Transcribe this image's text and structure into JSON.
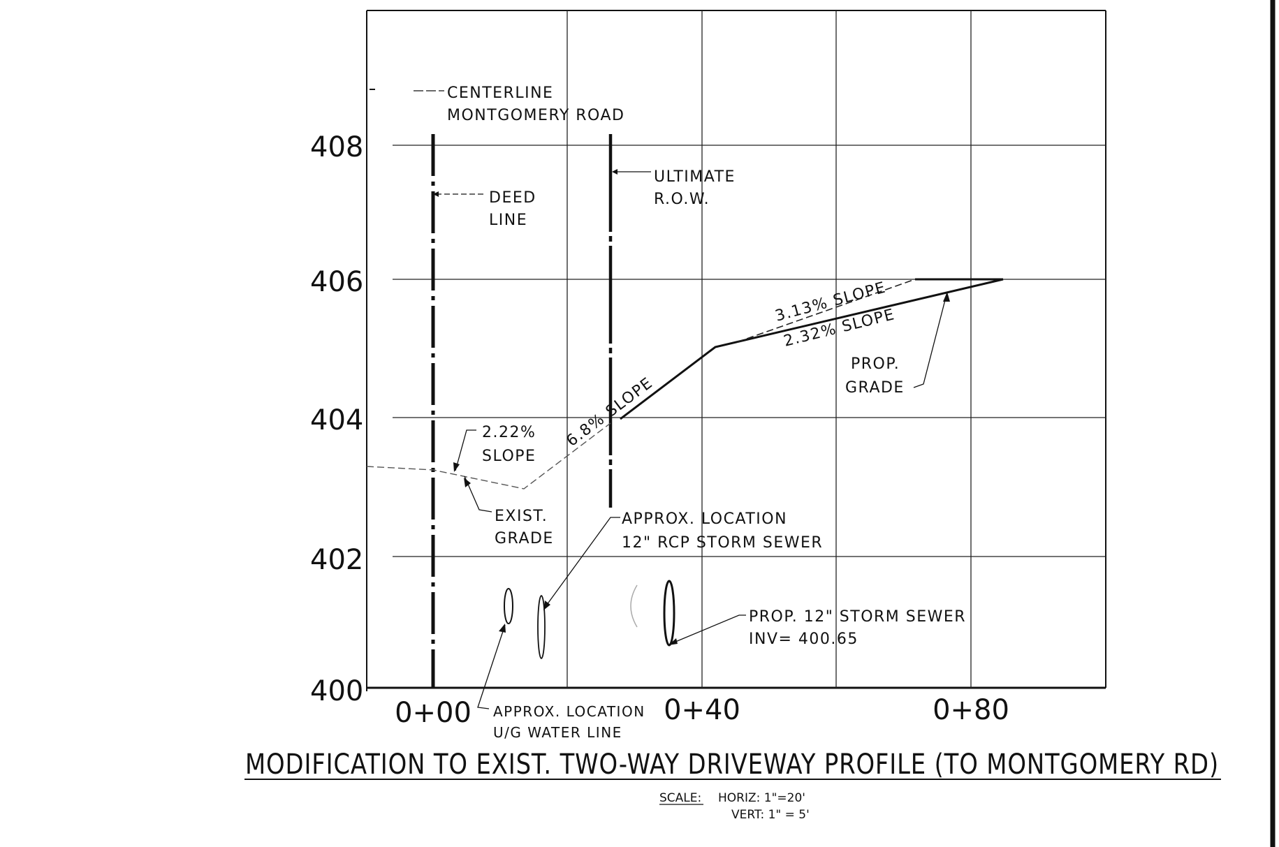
{
  "title": "MODIFICATION TO EXIST. TWO-WAY DRIVEWAY PROFILE (TO MONTGOMERY RD)",
  "scale": {
    "label": "SCALE:",
    "horiz": "HORIZ:  1\"=20'",
    "vert": "VERT:   1\" = 5'"
  },
  "y_ticks": [
    "408",
    "406",
    "404",
    "402",
    "400"
  ],
  "x_ticks": [
    "0+00",
    "0+40",
    "0+80"
  ],
  "labels": {
    "centerline_1": "CENTERLINE",
    "centerline_2": "MONTGOMERY ROAD",
    "deed_1": "DEED",
    "deed_2": "LINE",
    "row_1": "ULTIMATE",
    "row_2": "R.O.W.",
    "slope_313": "3.13% SLOPE",
    "slope_232": "2.32% SLOPE",
    "prop_grade_1": "PROP.",
    "prop_grade_2": "GRADE",
    "slope_68": "6.8% SLOPE",
    "slope_222_1": "2.22%",
    "slope_222_2": "SLOPE",
    "exist_grade_1": "EXIST.",
    "exist_grade_2": "GRADE",
    "storm_approx_1": "APPROX. LOCATION",
    "storm_approx_2": "12\" RCP STORM SEWER",
    "prop_storm_1": "PROP. 12\" STORM SEWER",
    "prop_storm_2": "INV= 400.65",
    "water_1": "APPROX. LOCATION",
    "water_2": "U/G WATER LINE"
  },
  "chart_data": {
    "type": "line",
    "xlabel": "",
    "ylabel": "",
    "xlim": [
      -10,
      100
    ],
    "ylim": [
      400,
      410
    ],
    "x_ticks": [
      "0+00",
      "0+40",
      "0+80"
    ],
    "y_ticks": [
      400,
      402,
      404,
      406,
      408
    ],
    "grid": true,
    "series": [
      {
        "name": "EXIST. GRADE",
        "x": [
          -20,
          0,
          10,
          20
        ],
        "y": [
          403.3,
          403.2,
          403.0,
          404.0
        ]
      },
      {
        "name": "PROP. GRADE",
        "x": [
          20,
          35,
          85
        ],
        "y": [
          404.0,
          405.0,
          406.0
        ]
      },
      {
        "name": "3.13% SLOPE",
        "x": [
          35,
          75,
          82
        ],
        "y": [
          405.0,
          405.9,
          406.0
        ]
      }
    ]
  }
}
